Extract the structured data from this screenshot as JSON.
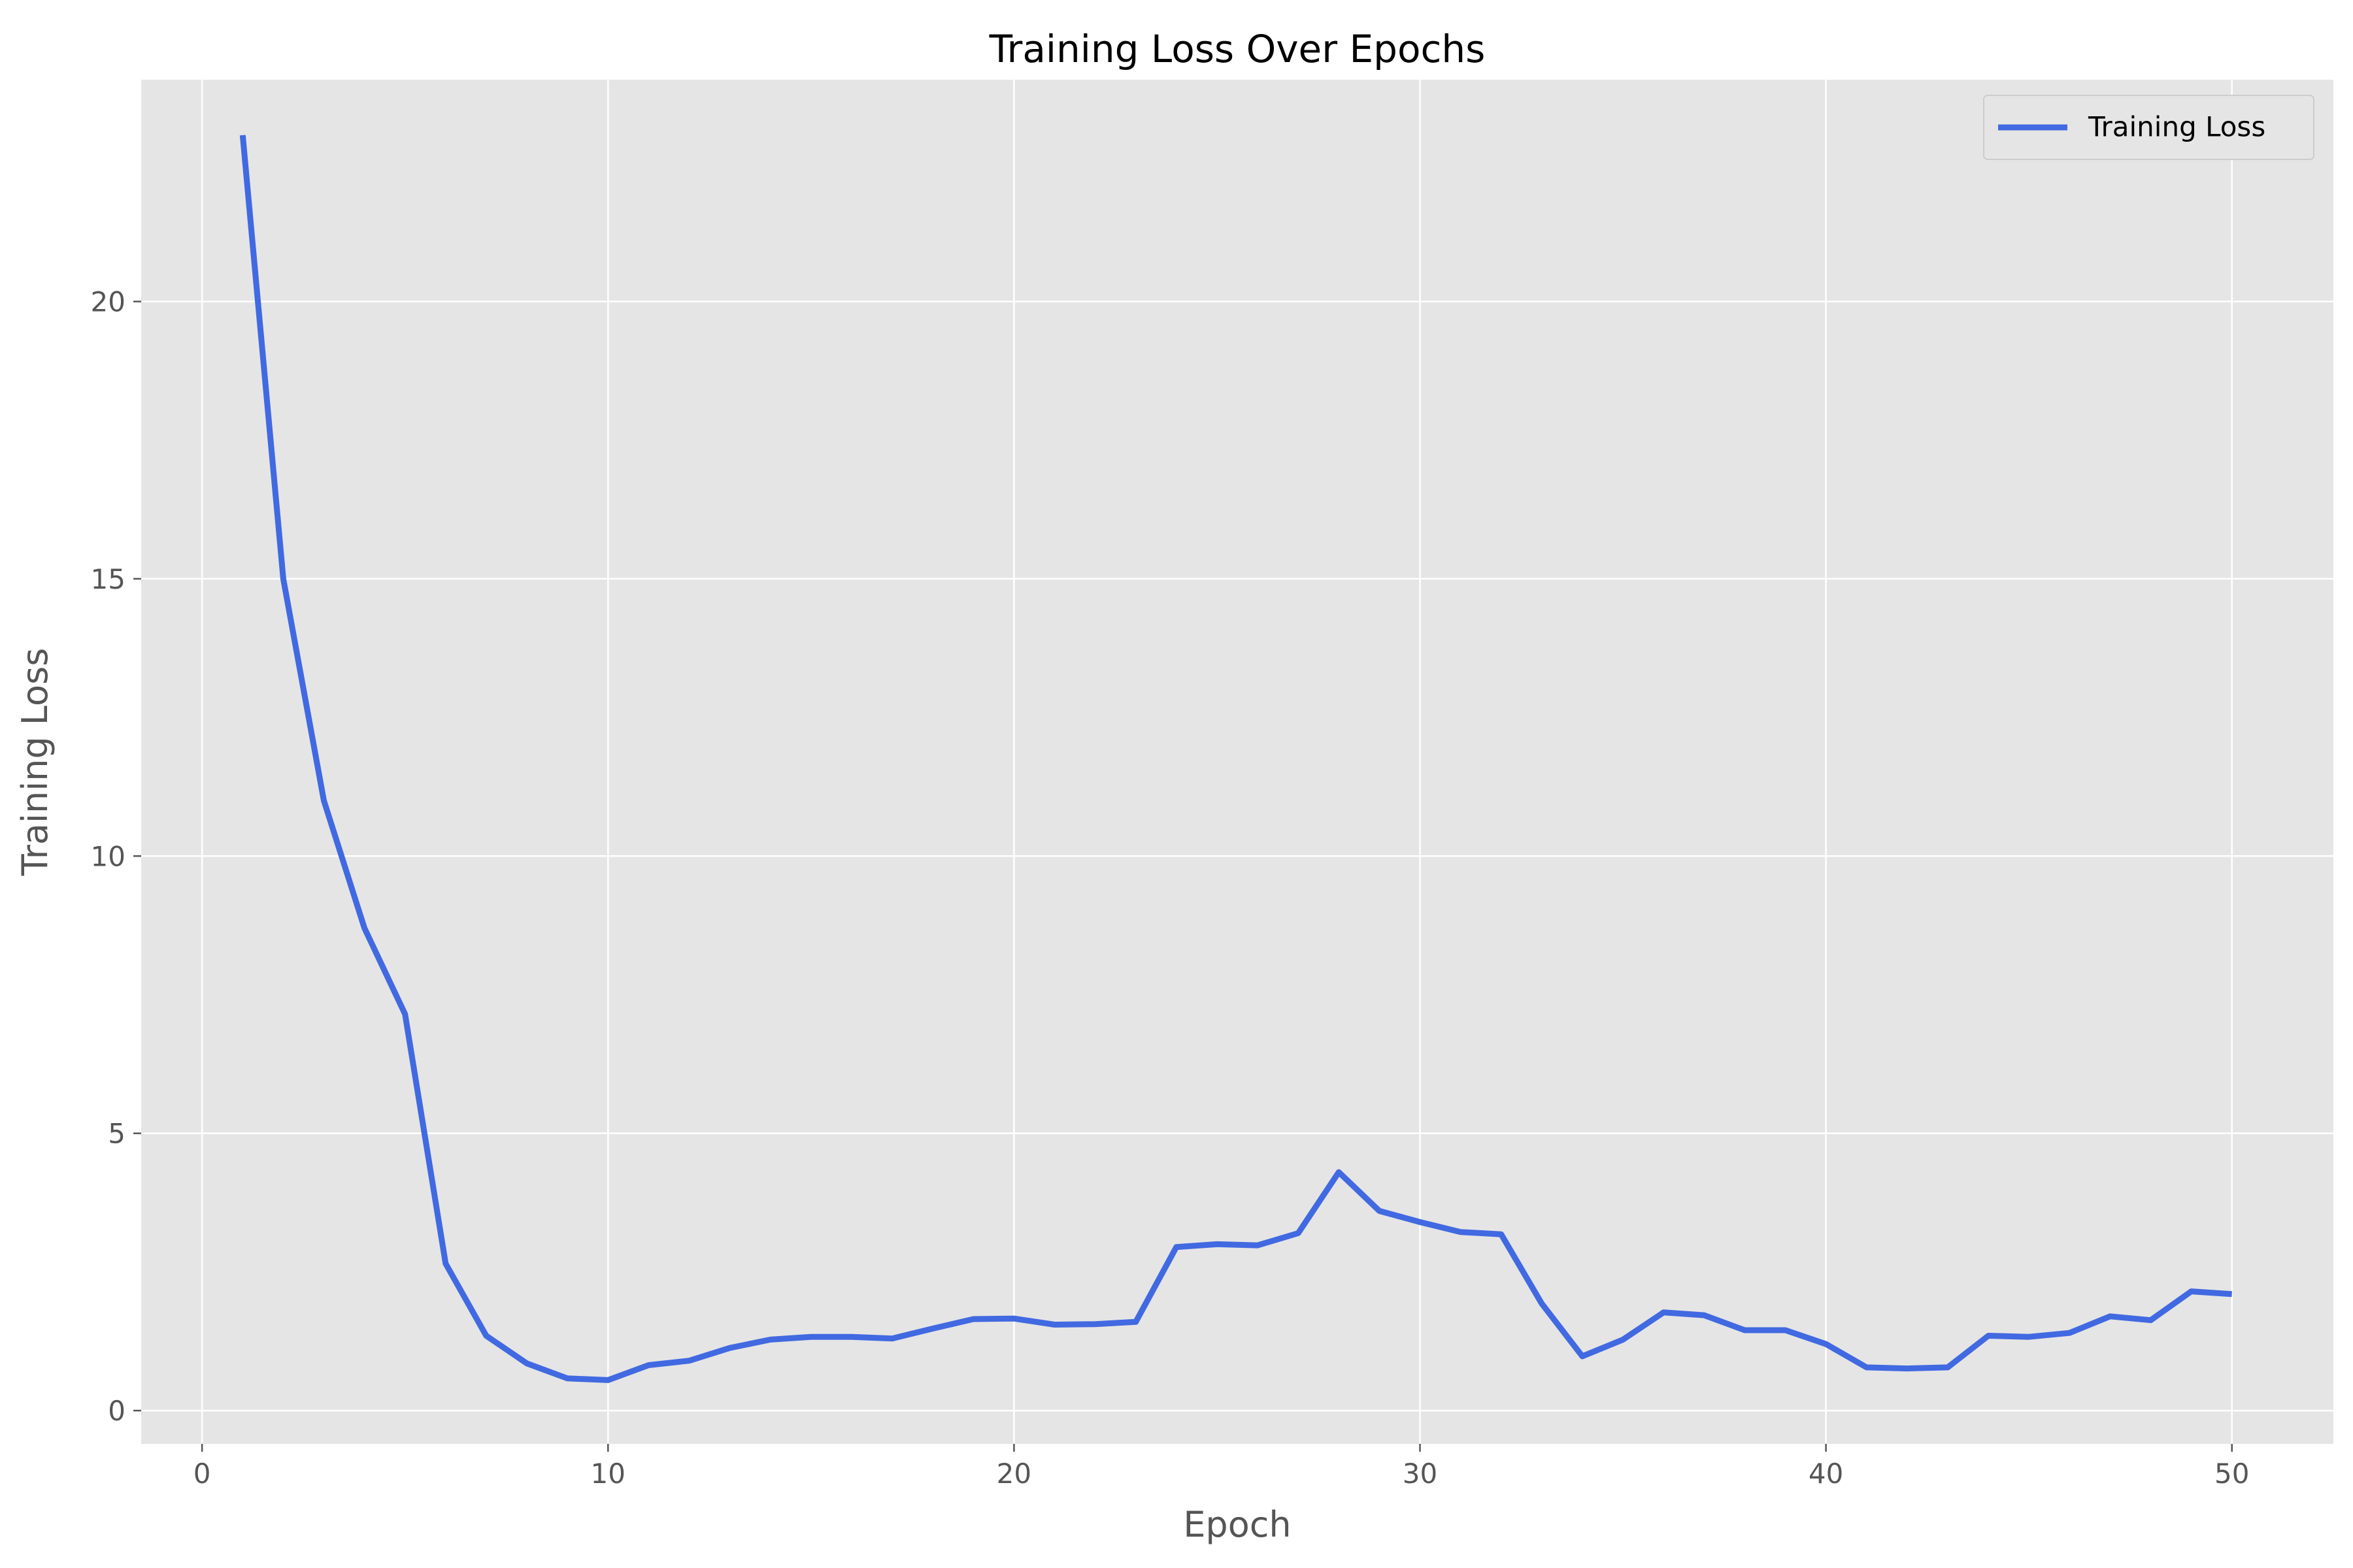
{
  "chart_data": {
    "type": "line",
    "title": "Training Loss Over Epochs",
    "xlabel": "Epoch",
    "ylabel": "Training Loss",
    "xlim": [
      -1.5,
      52.5
    ],
    "ylim": [
      -0.6,
      24.0
    ],
    "xticks": [
      0,
      10,
      20,
      30,
      40,
      50
    ],
    "yticks": [
      0,
      5,
      10,
      15,
      20
    ],
    "grid": true,
    "legend_position": "top-right",
    "colors": {
      "plot_background": "#e5e5e5",
      "grid": "#ffffff",
      "line": "#4169e1"
    },
    "x": [
      1,
      2,
      3,
      4,
      5,
      6,
      7,
      8,
      9,
      10,
      11,
      12,
      13,
      14,
      15,
      16,
      17,
      18,
      19,
      20,
      21,
      22,
      23,
      24,
      25,
      26,
      27,
      28,
      29,
      30,
      31,
      32,
      33,
      34,
      35,
      36,
      37,
      38,
      39,
      40,
      41,
      42,
      43,
      44,
      45,
      46,
      47,
      48,
      49,
      50
    ],
    "series": [
      {
        "name": "Training Loss",
        "values": [
          23.0,
          15.0,
          11.0,
          8.7,
          7.15,
          2.65,
          1.35,
          0.85,
          0.58,
          0.55,
          0.82,
          0.9,
          1.13,
          1.28,
          1.33,
          1.33,
          1.3,
          1.48,
          1.65,
          1.66,
          1.55,
          1.56,
          1.6,
          2.95,
          3.0,
          2.98,
          3.2,
          4.3,
          3.6,
          3.4,
          3.22,
          3.18,
          1.93,
          0.98,
          1.28,
          1.77,
          1.72,
          1.45,
          1.45,
          1.2,
          0.78,
          0.76,
          0.78,
          1.35,
          1.33,
          1.4,
          1.7,
          1.63,
          2.15,
          2.1
        ]
      }
    ]
  }
}
